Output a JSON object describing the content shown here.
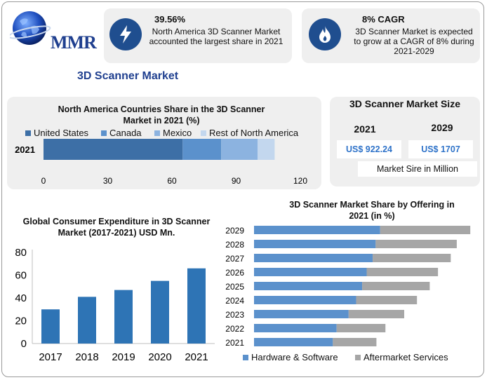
{
  "brand": {
    "logo_text": "MMR"
  },
  "header": {
    "title": "3D Scanner Market",
    "card1": {
      "headline": "39.56%",
      "text": "North America 3D Scanner Market accounted the largest share in 2021",
      "icon": "lightning-icon"
    },
    "card2": {
      "headline": "8% CAGR",
      "text": "3D Scanner Market is expected to grow at a CAGR of 8% during 2021-2029",
      "icon": "flame-icon"
    }
  },
  "market_size": {
    "title": "3D Scanner Market Size",
    "year1": "2021",
    "year2": "2029",
    "value1": "US$ 922.24",
    "value2": "US$ 1707",
    "unit_note": "Market Sire in Million"
  },
  "colors": {
    "dark_blue": "#3d6fa6",
    "mid_blue": "#5b91cc",
    "light_blue": "#8cb3e0",
    "pale_blue": "#c3d7ee",
    "bar_blue": "#2e74b5",
    "grey": "#a6a6a6",
    "card_bg": "#efefef",
    "accent": "#1f4e8f"
  },
  "chart_data": [
    {
      "type": "bar",
      "orientation": "horizontal-stacked",
      "title": "North America Countries Share in the 3D Scanner Market in 2021 (%)",
      "categories": [
        "2021"
      ],
      "series": [
        {
          "name": "United States",
          "values": [
            65
          ]
        },
        {
          "name": "Canada",
          "values": [
            18
          ]
        },
        {
          "name": "Mexico",
          "values": [
            17
          ]
        },
        {
          "name": "Rest of North America",
          "values": [
            8
          ]
        }
      ],
      "xticks": [
        "0",
        "30",
        "60",
        "90",
        "120"
      ],
      "xlim": [
        0,
        120
      ],
      "legend": "top"
    },
    {
      "type": "bar",
      "title": "Global Consumer Expenditure in 3D Scanner Market (2017-2021) USD Mn.",
      "categories": [
        "2017",
        "2018",
        "2019",
        "2020",
        "2021"
      ],
      "values": [
        30,
        41,
        47,
        55,
        66
      ],
      "yticks": [
        "0",
        "20",
        "40",
        "60",
        "80"
      ],
      "ylim": [
        0,
        80
      ]
    },
    {
      "type": "bar",
      "orientation": "horizontal-stacked",
      "title": "3D Scanner Market Share by Offering in 2021 (in %)",
      "categories": [
        "2029",
        "2028",
        "2027",
        "2026",
        "2025",
        "2024",
        "2023",
        "2022",
        "2021"
      ],
      "series": [
        {
          "name": "Hardware & Software",
          "values": [
            168,
            162,
            158,
            150,
            144,
            136,
            126,
            110,
            105
          ]
        },
        {
          "name": "Aftermarket Services",
          "values": [
            120,
            108,
            104,
            95,
            90,
            81,
            74,
            65,
            58
          ]
        }
      ],
      "xlim": [
        0,
        300
      ],
      "legend": "bottom"
    }
  ]
}
